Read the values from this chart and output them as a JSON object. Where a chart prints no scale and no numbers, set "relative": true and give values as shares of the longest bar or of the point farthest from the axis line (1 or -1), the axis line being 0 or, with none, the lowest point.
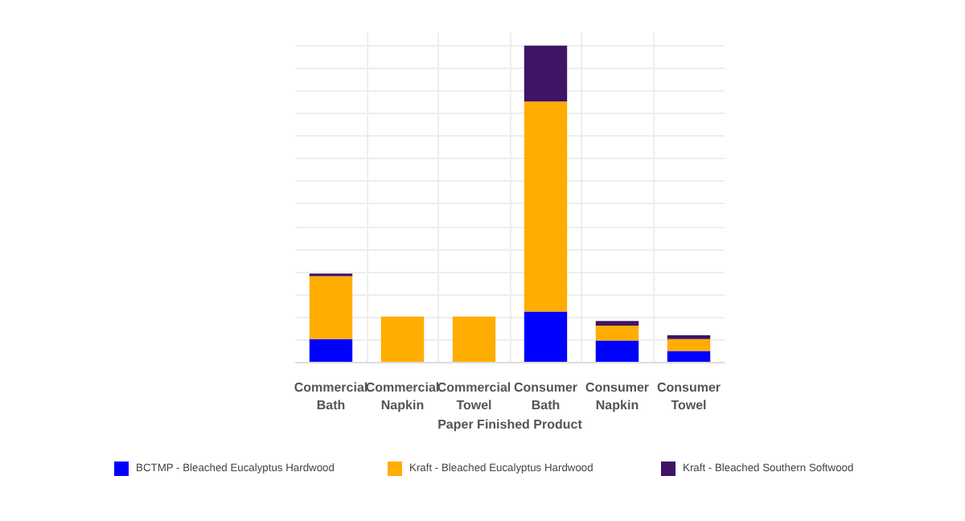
{
  "chart_data": {
    "type": "bar",
    "stacked": true,
    "relative": true,
    "xlabel": "Paper Finished Product",
    "categories": [
      "Commercial Bath",
      "Commercial Napkin",
      "Commercial Towel",
      "Consumer Bath",
      "Consumer Napkin",
      "Consumer Towel"
    ],
    "series": [
      {
        "name": "BCTMP - Bleached Eucalyptus Hardwood",
        "color": "#0000ff",
        "values": [
          0.074,
          0,
          0,
          0.161,
          0.07,
          0.037
        ]
      },
      {
        "name": "Kraft - Bleached Eucalyptus Hardwood",
        "color": "#ffad00",
        "values": [
          0.199,
          0.145,
          0.145,
          0.663,
          0.047,
          0.037
        ]
      },
      {
        "name": "Kraft - Bleached Southern Softwood",
        "color": "#3f1465",
        "values": [
          0.008,
          0,
          0,
          0.176,
          0.014,
          0.012
        ]
      }
    ],
    "grid": true,
    "legend": "bottom"
  }
}
